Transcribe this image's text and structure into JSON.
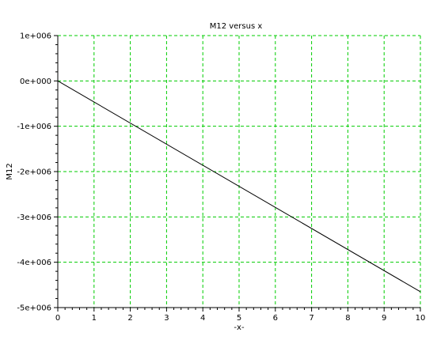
{
  "chart_data": {
    "type": "line",
    "title": "M12 versus x",
    "xlabel": "-x-",
    "ylabel": "M12",
    "xlim": [
      0,
      10
    ],
    "ylim": [
      -5000000,
      1000000
    ],
    "x_ticks": [
      0,
      1,
      2,
      3,
      4,
      5,
      6,
      7,
      8,
      9,
      10
    ],
    "x_tick_labels": [
      "0",
      "1",
      "2",
      "3",
      "4",
      "5",
      "6",
      "7",
      "8",
      "9",
      "10"
    ],
    "y_ticks": [
      1000000,
      0,
      -1000000,
      -2000000,
      -3000000,
      -4000000,
      -5000000
    ],
    "y_tick_labels": [
      "1e+006",
      "0e+000",
      "-1e+006",
      "-2e+006",
      "-3e+006",
      "-4e+006",
      "-5e+006"
    ],
    "grid": true,
    "grid_color": "#00cc00",
    "line_color": "#000000",
    "series": [
      {
        "x": [
          0,
          10
        ],
        "y": [
          0,
          -4650000
        ]
      }
    ]
  }
}
